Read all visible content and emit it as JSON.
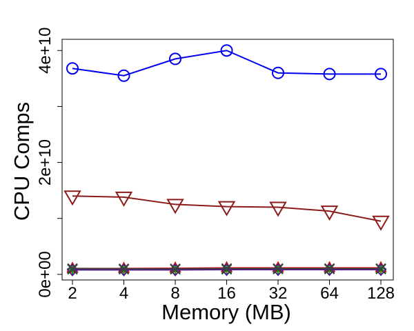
{
  "chart_data": {
    "type": "line",
    "title": "",
    "xlabel": "Memory (MB)",
    "ylabel": "CPU Comps",
    "x_tick_labels": [
      "2",
      "4",
      "8",
      "16",
      "32",
      "64",
      "128"
    ],
    "y_tick_labels": [
      "0e+00",
      "2e+10",
      "4e+10"
    ],
    "y_ticks": [
      0,
      10000000000,
      20000000000,
      30000000000,
      40000000000
    ],
    "ylim": [
      -1000000000,
      42000000000
    ],
    "grid": false,
    "legend": "none",
    "series": [
      {
        "color": "#0000ee",
        "marker": "circle",
        "values": [
          36800000000,
          35500000000,
          38500000000,
          40000000000,
          36000000000,
          35800000000,
          35800000000
        ]
      },
      {
        "color": "#8b1a1a",
        "marker": "triangle-down",
        "values": [
          14000000000,
          13800000000,
          12500000000,
          12100000000,
          12000000000,
          11300000000,
          9500000000
        ]
      },
      {
        "color": "#ee0000",
        "marker": "triangle-up",
        "values": [
          1050000000,
          1050000000,
          1100000000,
          1150000000,
          1150000000,
          1150000000,
          1150000000
        ]
      },
      {
        "color": "#00aa00",
        "marker": "plus",
        "values": [
          950000000,
          950000000,
          950000000,
          1000000000,
          1000000000,
          1000000000,
          1000000000
        ]
      },
      {
        "color": "#006400",
        "marker": "cross",
        "values": [
          900000000,
          900000000,
          900000000,
          900000000,
          950000000,
          950000000,
          950000000
        ]
      },
      {
        "color": "#551a8b",
        "marker": "diamond",
        "values": [
          800000000,
          800000000,
          800000000,
          850000000,
          850000000,
          850000000,
          850000000
        ]
      },
      {
        "color": "#404040",
        "marker": "x",
        "values": [
          1050000000,
          1000000000,
          1000000000,
          1050000000,
          1050000000,
          1050000000,
          1050000000
        ]
      }
    ]
  }
}
